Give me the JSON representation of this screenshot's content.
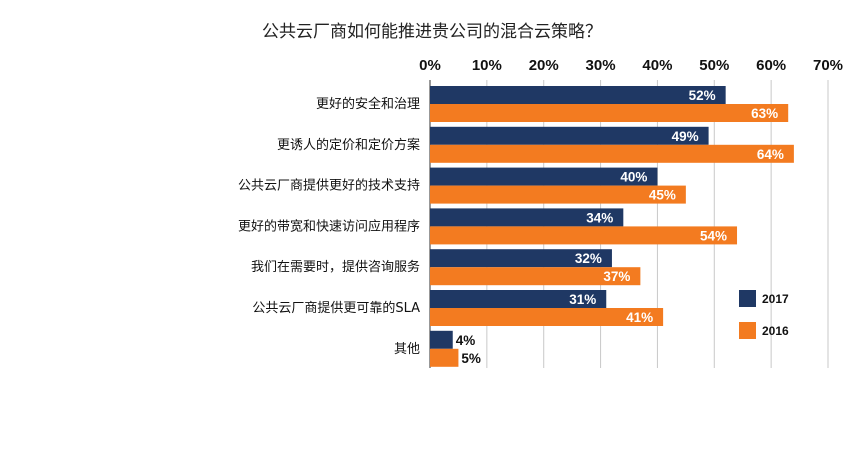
{
  "chart_data": {
    "type": "bar",
    "orientation": "horizontal",
    "title": "公共云厂商如何能推进贵公司的混合云策略？",
    "categories": [
      "更好的安全和治理",
      "更诱人的定价和定价方案",
      "公共云厂商提供更好的技术支持",
      "更好的带宽和快速访问应用程序",
      "我们在需要时，提供咨询服务",
      "公共云厂商提供更可靠的SLA",
      "其他"
    ],
    "series": [
      {
        "name": "2017",
        "color": "#1f3864",
        "label_color": "#ffffff",
        "values": [
          52,
          49,
          40,
          34,
          32,
          31,
          4
        ]
      },
      {
        "name": "2016",
        "color": "#f37b20",
        "label_color": "#ffffff",
        "values": [
          63,
          64,
          45,
          54,
          37,
          41,
          5
        ]
      }
    ],
    "value_format": "%",
    "xlim": [
      0,
      70
    ],
    "xticks": [
      "0%",
      "10%",
      "20%",
      "30%",
      "40%",
      "50%",
      "60%",
      "70%"
    ],
    "x_axis_position": "top",
    "grid": true,
    "legend_position": "right"
  }
}
